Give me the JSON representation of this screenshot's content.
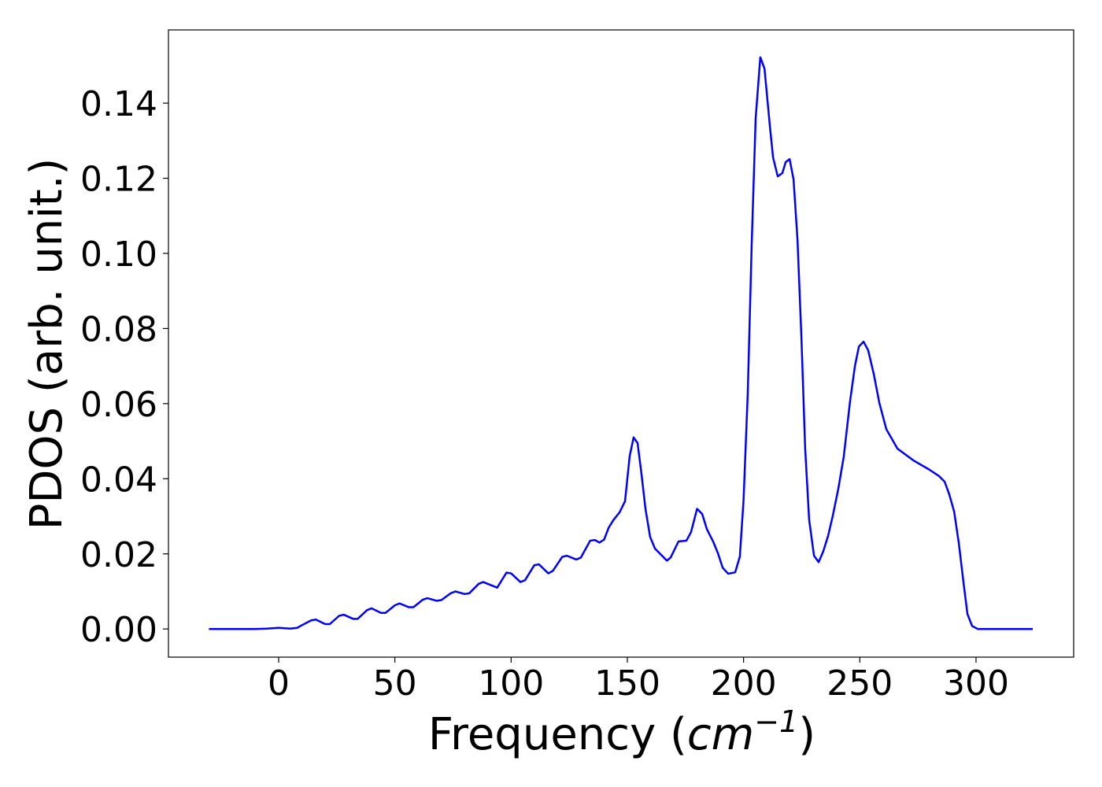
{
  "chart_data": {
    "type": "line",
    "xlabel": [
      "Frequency (",
      "cm",
      "−1",
      ")"
    ],
    "ylabel": "PDOS (arb. unit.)",
    "x": [
      -30,
      -20,
      -10,
      -5,
      0,
      5,
      8,
      10,
      14,
      16,
      20,
      22,
      26,
      28,
      32,
      34,
      38,
      40,
      44,
      46,
      50,
      52,
      56,
      58,
      62,
      64,
      68,
      70,
      74,
      76,
      80,
      82,
      86,
      88,
      92,
      94,
      98,
      100,
      104,
      106,
      110,
      112,
      116,
      118,
      122,
      124,
      128,
      130,
      134,
      136,
      138,
      140,
      142,
      144,
      146.6,
      149,
      151,
      152.7,
      154.4,
      156,
      157.8,
      159.8,
      161.9,
      167,
      168.6,
      172,
      175.4,
      177.4,
      180,
      182.2,
      184.2,
      186.9,
      189,
      191,
      193.4,
      196.4,
      198.4,
      200,
      201.8,
      203.5,
      205.2,
      207.2,
      209,
      211.3,
      212.7,
      214.7,
      216.7,
      218.1,
      219.8,
      221.5,
      223.2,
      224.9,
      226.5,
      228.2,
      230.3,
      232.3,
      234.3,
      236.4,
      238.4,
      240.8,
      243.1,
      245.8,
      247.9,
      249.6,
      251.6,
      253.6,
      256,
      258.4,
      261.4,
      266.2,
      273,
      279.7,
      284.1,
      286.5,
      288.5,
      290.6,
      292.6,
      294.6,
      296.3,
      298.3,
      300.7,
      310,
      324.4
    ],
    "series": [
      {
        "color": "#0000ff",
        "values": [
          0,
          0,
          0,
          0.0001,
          0.0003,
          0.0001,
          0.0003,
          0.001,
          0.0023,
          0.0025,
          0.0013,
          0.0013,
          0.0035,
          0.0038,
          0.0027,
          0.0027,
          0.005,
          0.0055,
          0.0043,
          0.0043,
          0.0063,
          0.0068,
          0.0058,
          0.0058,
          0.0078,
          0.0082,
          0.0075,
          0.0077,
          0.0095,
          0.01,
          0.0093,
          0.0095,
          0.012,
          0.0125,
          0.0115,
          0.011,
          0.015,
          0.0148,
          0.0125,
          0.013,
          0.017,
          0.0172,
          0.0148,
          0.0155,
          0.0192,
          0.0195,
          0.0185,
          0.019,
          0.0235,
          0.0237,
          0.023,
          0.0238,
          0.027,
          0.029,
          0.031,
          0.034,
          0.046,
          0.051,
          0.0495,
          0.0417,
          0.032,
          0.0245,
          0.0214,
          0.0182,
          0.019,
          0.0233,
          0.0235,
          0.0258,
          0.032,
          0.0306,
          0.0266,
          0.0233,
          0.0201,
          0.0163,
          0.0147,
          0.0151,
          0.0193,
          0.0344,
          0.0627,
          0.1025,
          0.136,
          0.1522,
          0.1492,
          0.134,
          0.1255,
          0.1205,
          0.1214,
          0.1243,
          0.1251,
          0.1197,
          0.1036,
          0.0773,
          0.048,
          0.0291,
          0.0195,
          0.0178,
          0.0207,
          0.0249,
          0.0302,
          0.0375,
          0.0459,
          0.0606,
          0.07,
          0.0752,
          0.0765,
          0.0742,
          0.0679,
          0.0602,
          0.0532,
          0.048,
          0.0449,
          0.0425,
          0.0407,
          0.0392,
          0.0358,
          0.0312,
          0.0228,
          0.0124,
          0.004,
          0.0008,
          0,
          0,
          0
        ]
      }
    ],
    "xlim": [
      -47.4,
      342
    ],
    "ylim": [
      -0.0075,
      0.1595
    ],
    "xticks": [
      0,
      50,
      100,
      150,
      200,
      250,
      300
    ],
    "yticks": [
      {
        "value": 0,
        "label": "0.00"
      },
      {
        "value": 0.02,
        "label": "0.02"
      },
      {
        "value": 0.04,
        "label": "0.04"
      },
      {
        "value": 0.06,
        "label": "0.06"
      },
      {
        "value": 0.08,
        "label": "0.08"
      },
      {
        "value": 0.1,
        "label": "0.10"
      },
      {
        "value": 0.12,
        "label": "0.12"
      },
      {
        "value": 0.14,
        "label": "0.14"
      }
    ]
  }
}
